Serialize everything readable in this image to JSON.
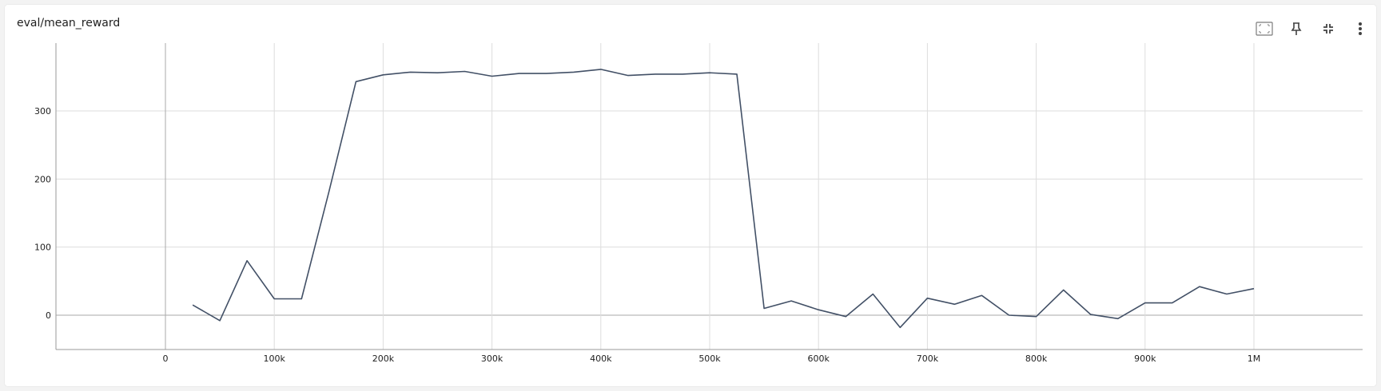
{
  "card": {
    "title": "eval/mean_reward"
  },
  "toolbar": {
    "items": [
      {
        "icon": "fit-to-data-icon"
      },
      {
        "icon": "pin-icon"
      },
      {
        "icon": "collapse-icon"
      },
      {
        "icon": "more-vert-icon"
      }
    ]
  },
  "colors": {
    "line": "#425066",
    "grid": "#dddddd",
    "axis": "#999999",
    "zero": "#aaaaaa"
  },
  "chart_data": {
    "type": "line",
    "title": "eval/mean_reward",
    "xlabel": "",
    "ylabel": "",
    "xlim": [
      -1000000,
      10000000
    ],
    "ylim": [
      -50,
      400
    ],
    "x_ticks": [
      0,
      100000,
      200000,
      300000,
      400000,
      500000,
      600000,
      700000,
      800000,
      900000,
      1000000
    ],
    "x_tick_labels": [
      "0",
      "100k",
      "200k",
      "300k",
      "400k",
      "500k",
      "600k",
      "700k",
      "800k",
      "900k",
      "1M"
    ],
    "y_ticks": [
      0,
      100,
      200,
      300
    ],
    "y_tick_labels": [
      "0",
      "100",
      "200",
      "300"
    ],
    "grid": true,
    "series": [
      {
        "x": [
          25000,
          50000,
          75000,
          100000,
          125000,
          150000,
          175000,
          200000,
          225000,
          250000,
          275000,
          300000,
          325000,
          350000,
          375000,
          400000,
          425000,
          450000,
          475000,
          500000,
          525000,
          550000,
          575000,
          600000,
          625000,
          650000,
          675000,
          700000,
          725000,
          750000,
          775000,
          800000,
          825000,
          850000,
          875000,
          900000,
          925000,
          950000,
          975000,
          1000000
        ],
        "values": [
          15,
          -8,
          80,
          24,
          24,
          180,
          343,
          353,
          357,
          356,
          358,
          351,
          355,
          355,
          357,
          361,
          352,
          354,
          354,
          356,
          354,
          10,
          21,
          8,
          -2,
          31,
          -18,
          25,
          16,
          29,
          0,
          -2,
          37,
          1,
          -5,
          18,
          18,
          42,
          31,
          39
        ]
      }
    ]
  }
}
